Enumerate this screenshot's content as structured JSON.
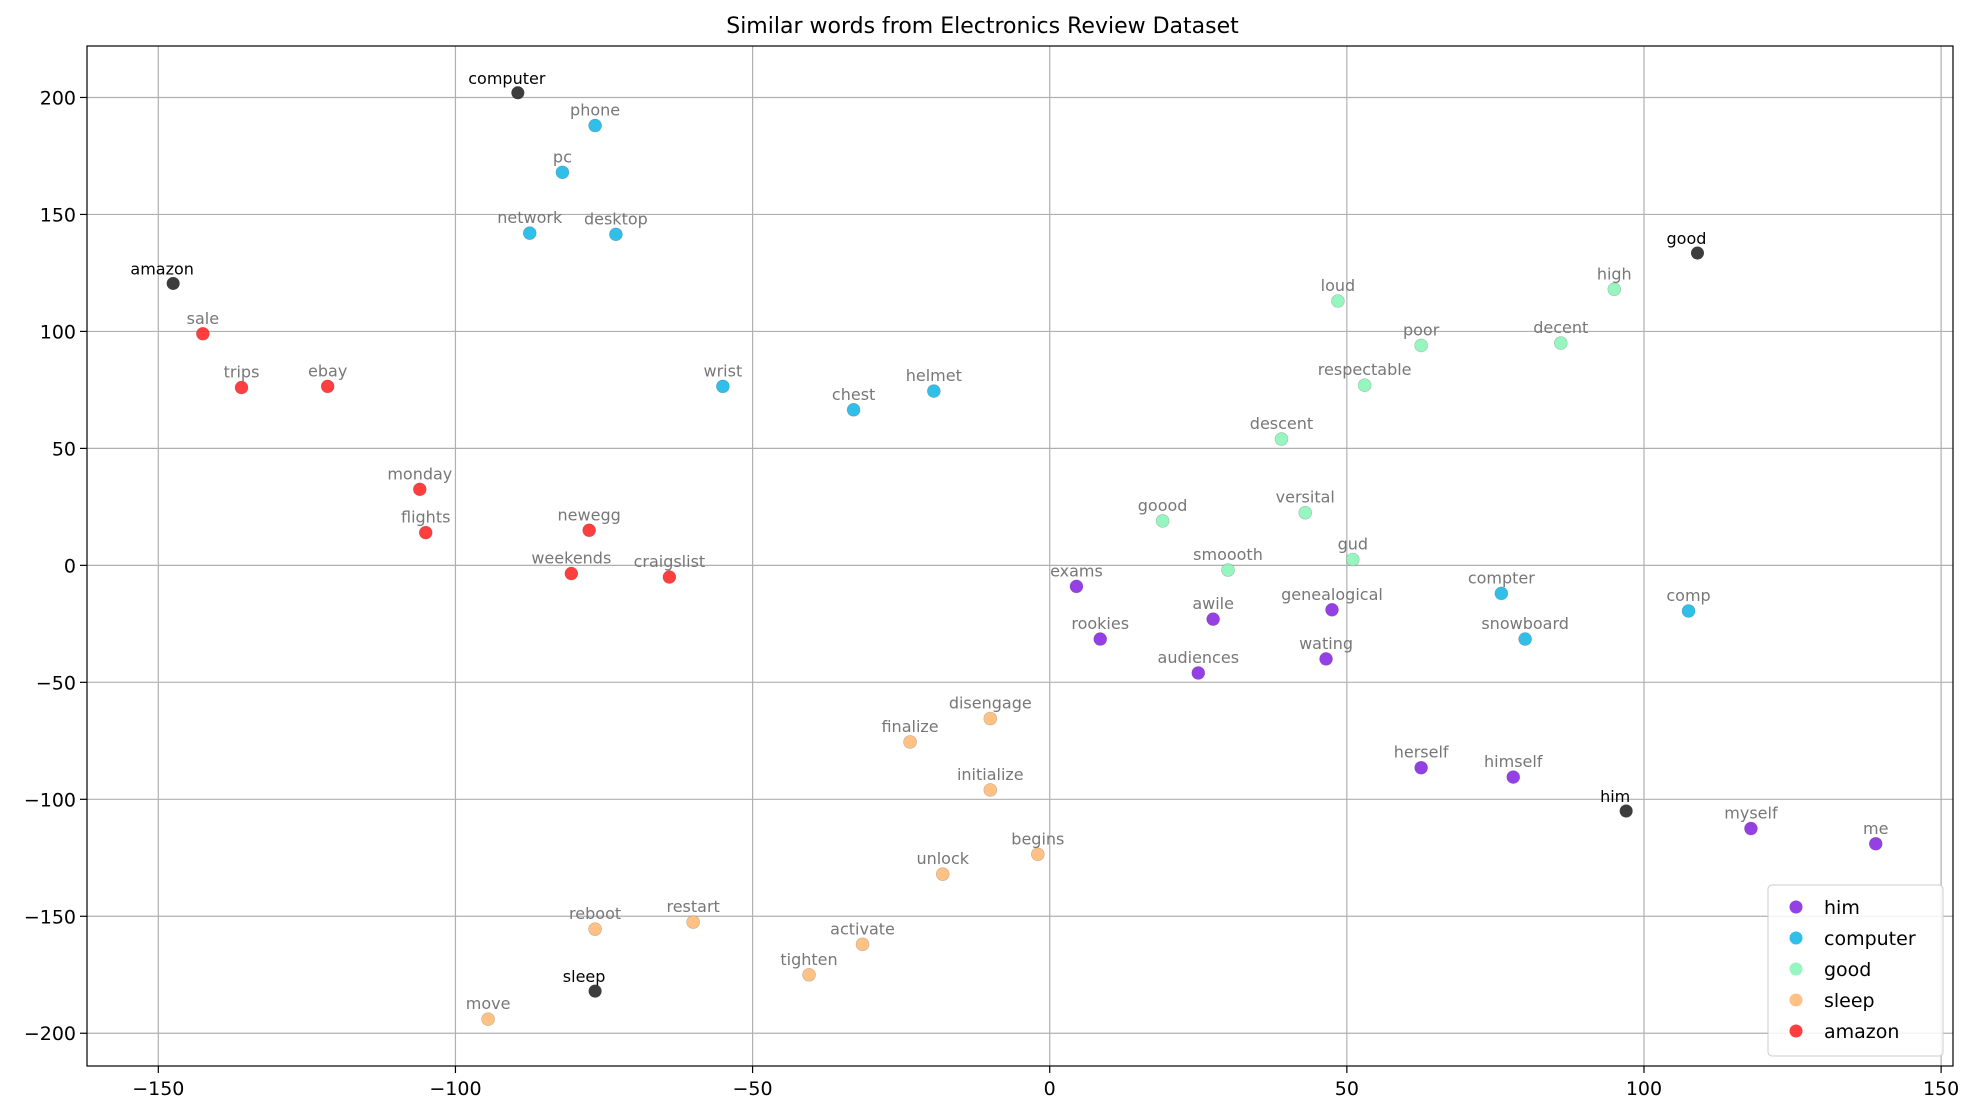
{
  "chart_data": {
    "type": "scatter",
    "title": "Similar words from Electronics Review Dataset",
    "xlabel": "",
    "ylabel": "",
    "xlim": [
      -162,
      152
    ],
    "ylim": [
      -214,
      222
    ],
    "x_ticks": [
      -150,
      -100,
      -50,
      0,
      50,
      100,
      150
    ],
    "y_ticks": [
      -200,
      -150,
      -100,
      -50,
      0,
      50,
      100,
      150,
      200
    ],
    "x_tick_labels": [
      "−150",
      "−100",
      "−50",
      "0",
      "50",
      "100",
      "150"
    ],
    "y_tick_labels": [
      "−200",
      "−150",
      "−100",
      "−50",
      "0",
      "50",
      "100",
      "150",
      "200"
    ],
    "grid": true,
    "legend_position": "lower-right",
    "anchor_color": "#333333",
    "series": [
      {
        "name": "him",
        "color": "#8a2be2",
        "points": [
          {
            "label": "exams",
            "x": 4.5,
            "y": -9
          },
          {
            "label": "awile",
            "x": 27.5,
            "y": -23
          },
          {
            "label": "genealogical",
            "x": 47.5,
            "y": -19
          },
          {
            "label": "rookies",
            "x": 8.5,
            "y": -31.5
          },
          {
            "label": "wating",
            "x": 46.5,
            "y": -40
          },
          {
            "label": "audiences",
            "x": 25,
            "y": -46
          },
          {
            "label": "herself",
            "x": 62.5,
            "y": -86.5
          },
          {
            "label": "himself",
            "x": 78,
            "y": -90.5
          },
          {
            "label": "myself",
            "x": 118,
            "y": -112.5
          },
          {
            "label": "me",
            "x": 139,
            "y": -119
          }
        ]
      },
      {
        "name": "computer",
        "color": "#1ab8e6",
        "points": [
          {
            "label": "phone",
            "x": -76.5,
            "y": 188
          },
          {
            "label": "pc",
            "x": -82,
            "y": 168
          },
          {
            "label": "network",
            "x": -87.5,
            "y": 142
          },
          {
            "label": "desktop",
            "x": -73,
            "y": 141.5
          },
          {
            "label": "wrist",
            "x": -55,
            "y": 76.5
          },
          {
            "label": "helmet",
            "x": -19.5,
            "y": 74.5
          },
          {
            "label": "chest",
            "x": -33,
            "y": 66.5
          },
          {
            "label": "compter",
            "x": 76,
            "y": -12
          },
          {
            "label": "comp",
            "x": 107.5,
            "y": -19.5
          },
          {
            "label": "snowboard",
            "x": 80,
            "y": -31.5
          }
        ]
      },
      {
        "name": "good",
        "color": "#8cf5b8",
        "points": [
          {
            "label": "high",
            "x": 95,
            "y": 118
          },
          {
            "label": "loud",
            "x": 48.5,
            "y": 113
          },
          {
            "label": "decent",
            "x": 86,
            "y": 95
          },
          {
            "label": "poor",
            "x": 62.5,
            "y": 94
          },
          {
            "label": "respectable",
            "x": 53,
            "y": 77
          },
          {
            "label": "descent",
            "x": 39,
            "y": 54
          },
          {
            "label": "versital",
            "x": 43,
            "y": 22.5
          },
          {
            "label": "goood",
            "x": 19,
            "y": 19
          },
          {
            "label": "gud",
            "x": 51,
            "y": 2.5
          },
          {
            "label": "smoooth",
            "x": 30,
            "y": -2
          }
        ]
      },
      {
        "name": "sleep",
        "color": "#ffbb77",
        "points": [
          {
            "label": "disengage",
            "x": -10,
            "y": -65.5
          },
          {
            "label": "finalize",
            "x": -23.5,
            "y": -75.5
          },
          {
            "label": "initialize",
            "x": -10,
            "y": -96
          },
          {
            "label": "begins",
            "x": -2,
            "y": -123.5
          },
          {
            "label": "unlock",
            "x": -18,
            "y": -132
          },
          {
            "label": "restart",
            "x": -60,
            "y": -152.5
          },
          {
            "label": "reboot",
            "x": -76.5,
            "y": -155.5
          },
          {
            "label": "activate",
            "x": -31.5,
            "y": -162
          },
          {
            "label": "tighten",
            "x": -40.5,
            "y": -175
          },
          {
            "label": "move",
            "x": -94.5,
            "y": -194
          }
        ]
      },
      {
        "name": "amazon",
        "color": "#ff2a2a",
        "points": [
          {
            "label": "sale",
            "x": -142.5,
            "y": 99
          },
          {
            "label": "trips",
            "x": -136,
            "y": 76
          },
          {
            "label": "ebay",
            "x": -121.5,
            "y": 76.5
          },
          {
            "label": "monday",
            "x": -106,
            "y": 32.5
          },
          {
            "label": "flights",
            "x": -105,
            "y": 14
          },
          {
            "label": "newegg",
            "x": -77.5,
            "y": 15
          },
          {
            "label": "weekends",
            "x": -80.5,
            "y": -3.5
          },
          {
            "label": "craigslist",
            "x": -64,
            "y": -5
          }
        ]
      }
    ],
    "anchors": [
      {
        "label": "computer",
        "x": -89.5,
        "y": 202
      },
      {
        "label": "good",
        "x": 109,
        "y": 133.5
      },
      {
        "label": "amazon",
        "x": -147.5,
        "y": 120.5
      },
      {
        "label": "him",
        "x": 97,
        "y": -105
      },
      {
        "label": "sleep",
        "x": -76.5,
        "y": -182
      }
    ]
  }
}
